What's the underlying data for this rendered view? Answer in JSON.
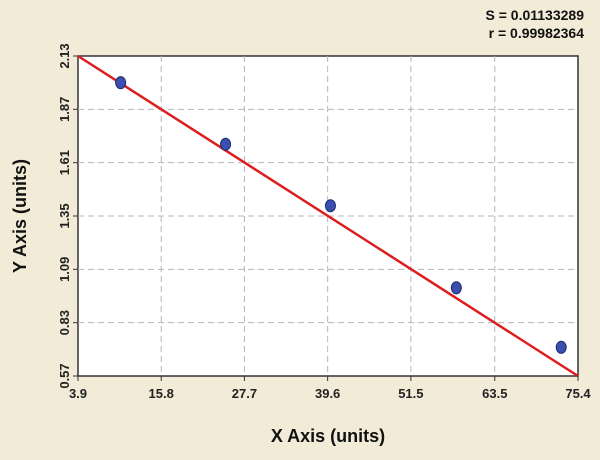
{
  "stats": {
    "s_text": "S = 0.01133289",
    "r_text": "r = 0.99982364"
  },
  "colors": {
    "background": "#f1ebd7",
    "plot_area": "#ffffff",
    "fit_line": "#dd1e1e",
    "points": "#3b4fb0",
    "grid": "#b5b5b5"
  },
  "chart_data": {
    "type": "scatter",
    "xlabel": "X Axis (units)",
    "ylabel": "Y Axis (units)",
    "xlim": [
      3.9,
      75.4
    ],
    "ylim": [
      0.57,
      2.13
    ],
    "x_ticks": [
      "3.9",
      "15.8",
      "27.7",
      "39.6",
      "51.5",
      "63.5",
      "75.4"
    ],
    "y_ticks": [
      "0.57",
      "0.83",
      "1.09",
      "1.35",
      "1.61",
      "1.87",
      "2.13"
    ],
    "grid": true,
    "series": [
      {
        "x": [
          10.0,
          25.0,
          40.0,
          58.0,
          73.0
        ],
        "y": [
          2.0,
          1.7,
          1.4,
          1.0,
          0.71
        ]
      }
    ],
    "fit_line": {
      "x": [
        3.9,
        75.4
      ],
      "y": [
        2.13,
        0.57
      ]
    }
  }
}
